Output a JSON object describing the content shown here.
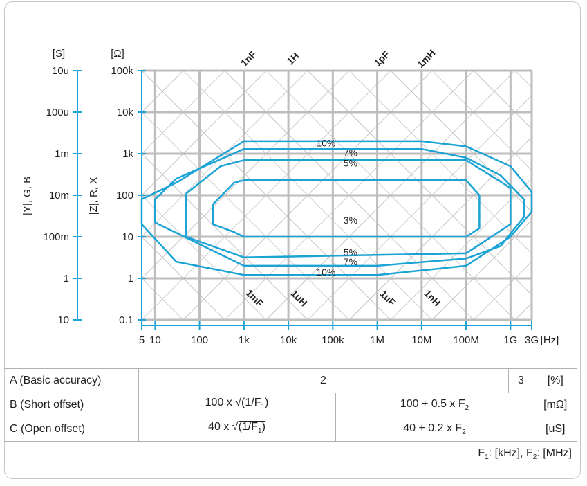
{
  "chart_data": {
    "type": "line",
    "x_scale": "log",
    "y_scale": "log",
    "units": {
      "y_admittance": "[S]",
      "y_impedance": "[Ω]",
      "x": "[Hz]"
    },
    "y_axis_left": {
      "title": "|Y|, G, B",
      "ticks": [
        "10u",
        "100u",
        "1m",
        "10m",
        "100m",
        "1",
        "10"
      ]
    },
    "y_axis_right": {
      "title": "|Z|, R, X",
      "ticks": [
        "100k",
        "10k",
        "1k",
        "100",
        "10",
        "1",
        "0.1"
      ]
    },
    "x_axis": {
      "ticks": [
        "5",
        "10",
        "100",
        "1k",
        "10k",
        "100k",
        "1M",
        "10M",
        "100M",
        "1G",
        "3G"
      ]
    },
    "xlim": [
      5,
      3000000000
    ],
    "ylim_ohm": [
      0.1,
      100000
    ],
    "grid": true,
    "diagonal_labels_top": [
      "1nF",
      "1H",
      "1pF",
      "1mH"
    ],
    "diagonal_labels_bottom": [
      "1mF",
      "1uH",
      "1uF",
      "1nH"
    ],
    "contour_color": "#1ba3d6",
    "grid_color": "#bdbdbd",
    "series": [
      {
        "name": "10%",
        "x": [
          5,
          30,
          1000,
          10000000,
          100000000,
          1000000000,
          3000000000,
          3000000000,
          1000000000,
          100000000,
          1000000,
          1000,
          30,
          5,
          5
        ],
        "y": [
          80,
          200,
          2000,
          2000,
          1500,
          500,
          120,
          40,
          10,
          2,
          1.2,
          1.2,
          2.5,
          20,
          80
        ]
      },
      {
        "name": "7%",
        "x": [
          10,
          30,
          1000,
          10000000,
          100000000,
          600000000,
          2000000000,
          2000000000,
          600000000,
          100000000,
          1000000,
          1000,
          10,
          10
        ],
        "y": [
          80,
          250,
          1300,
          1300,
          800,
          300,
          80,
          30,
          6,
          3,
          2,
          2,
          22,
          80
        ]
      },
      {
        "name": "5%",
        "x": [
          50,
          300,
          1000,
          100000000,
          1000000000,
          1000000000,
          100000000,
          1000,
          50,
          50
        ],
        "y": [
          110,
          500,
          700,
          700,
          150,
          20,
          4,
          3.2,
          10,
          110
        ]
      },
      {
        "name": "3%",
        "x": [
          200,
          600,
          1000,
          100000000,
          200000000,
          200000000,
          100000000,
          1000,
          600,
          200,
          200
        ],
        "y": [
          60,
          200,
          230,
          230,
          100,
          16,
          10,
          10,
          13,
          20,
          60
        ]
      }
    ],
    "contour_labels": [
      {
        "text": "10%",
        "x": 70000,
        "y": 1800
      },
      {
        "text": "7%",
        "x": 250000,
        "y": 1050
      },
      {
        "text": "5%",
        "x": 250000,
        "y": 600
      },
      {
        "text": "3%",
        "x": 250000,
        "y": 25
      },
      {
        "text": "5%",
        "x": 250000,
        "y": 4.2
      },
      {
        "text": "7%",
        "x": 250000,
        "y": 2.5
      },
      {
        "text": "10%",
        "x": 70000,
        "y": 1.4
      }
    ]
  },
  "table": {
    "rows": [
      {
        "label": "A (Basic accuracy)",
        "cells": [
          {
            "text": "2",
            "span": 2
          },
          {
            "text": "3"
          }
        ],
        "unit": "[%]"
      },
      {
        "label": "B (Short offset)",
        "low_prefix": "100 x ",
        "low_sqrt": "(1/F",
        "low_sub": "1",
        "low_close": ")",
        "high": "100 + 0.5 x F",
        "high_sub": "2",
        "unit": "[mΩ]"
      },
      {
        "label": "C (Open offset)",
        "low_prefix": "40 x ",
        "low_sqrt": "(1/F",
        "low_sub": "1",
        "low_close": ")",
        "high": "40 + 0.2 x F",
        "high_sub": "2",
        "unit": "[uS]"
      }
    ],
    "footnote": {
      "f1": "F",
      "f1_sub": "1",
      "f1_unit": ": [kHz], ",
      "f2": "F",
      "f2_sub": "2",
      "f2_unit": ": [MHz]"
    }
  }
}
